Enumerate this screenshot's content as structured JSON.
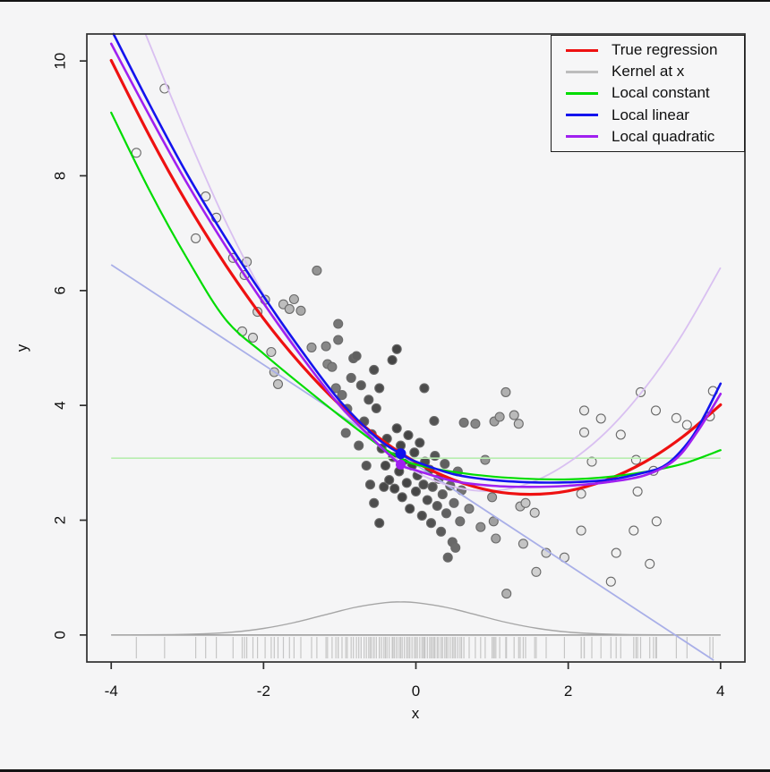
{
  "figure": {
    "background": "#f5f5f6",
    "frame_color": "#2e2e2e",
    "edge_bar_color": "#141414"
  },
  "legend": {
    "entries": [
      {
        "id": "true-regression",
        "label": "True regression",
        "color": "#EE1111"
      },
      {
        "id": "kernel-at-x",
        "label": "Kernel at x",
        "color": "#BDBDBD"
      },
      {
        "id": "local-constant",
        "label": "Local constant",
        "color": "#00DC00"
      },
      {
        "id": "local-linear",
        "label": "Local linear",
        "color": "#1414EE"
      },
      {
        "id": "local-quadratic",
        "label": "Local quadratic",
        "color": "#A020F0"
      }
    ]
  },
  "chart_data": {
    "type": "scatter",
    "title": "",
    "axes": {
      "x": {
        "label": "x",
        "ticks": [
          -4,
          -2,
          0,
          2,
          4
        ],
        "range": [
          -4.32,
          4.32
        ]
      },
      "y": {
        "label": "y",
        "ticks": [
          0,
          2,
          4,
          6,
          8,
          10
        ],
        "range": [
          -0.47,
          10.47
        ]
      }
    },
    "evaluation_point": {
      "x0": -0.2,
      "local_constant_fit": 3.08,
      "local_linear_fit": 3.16,
      "local_quadratic_fit": 2.97
    },
    "markers": [
      {
        "id": "local-linear-fit-point",
        "x": -0.2,
        "y": 3.16,
        "color": "#1212EE",
        "r": 6
      },
      {
        "id": "local-quadratic-fit-point",
        "x": -0.2,
        "y": 2.97,
        "color": "#A020F0",
        "r": 5.5
      }
    ],
    "curves": [
      {
        "id": "true-regression",
        "label": "True regression",
        "color": "#EE1111",
        "width": 3.2,
        "points": [
          [
            -4,
            10.01
          ],
          [
            -3.5,
            8.7
          ],
          [
            -3,
            7.51
          ],
          [
            -2.5,
            6.45
          ],
          [
            -2,
            5.51
          ],
          [
            -1.5,
            4.7
          ],
          [
            -1,
            4.01
          ],
          [
            -0.5,
            3.45
          ],
          [
            0,
            3.01
          ],
          [
            0.5,
            2.7
          ],
          [
            1,
            2.51
          ],
          [
            1.5,
            2.45
          ],
          [
            2,
            2.51
          ],
          [
            2.5,
            2.7
          ],
          [
            3,
            3.01
          ],
          [
            3.5,
            3.45
          ],
          [
            4,
            4.01
          ]
        ]
      },
      {
        "id": "local-constant",
        "label": "Local constant",
        "color": "#00DC00",
        "width": 2.2,
        "points": [
          [
            -4,
            9.1
          ],
          [
            -3.5,
            7.75
          ],
          [
            -3,
            6.55
          ],
          [
            -2.5,
            5.5
          ],
          [
            -2,
            4.9
          ],
          [
            -1.5,
            4.35
          ],
          [
            -1,
            3.82
          ],
          [
            -0.5,
            3.32
          ],
          [
            -0.2,
            3.08
          ],
          [
            0,
            2.97
          ],
          [
            0.5,
            2.84
          ],
          [
            1,
            2.76
          ],
          [
            1.5,
            2.72
          ],
          [
            2,
            2.71
          ],
          [
            2.5,
            2.75
          ],
          [
            3,
            2.84
          ],
          [
            3.5,
            2.98
          ],
          [
            4,
            3.22
          ]
        ]
      },
      {
        "id": "local-linear",
        "label": "Local linear",
        "color": "#1414EE",
        "width": 2.6,
        "points": [
          [
            -3.97,
            10.47
          ],
          [
            -3.5,
            9.25
          ],
          [
            -3,
            8.02
          ],
          [
            -2.5,
            6.92
          ],
          [
            -2,
            5.9
          ],
          [
            -1.5,
            4.95
          ],
          [
            -1,
            4.08
          ],
          [
            -0.5,
            3.42
          ],
          [
            -0.2,
            3.16
          ],
          [
            0,
            3.02
          ],
          [
            0.5,
            2.8
          ],
          [
            1,
            2.7
          ],
          [
            1.5,
            2.66
          ],
          [
            2,
            2.66
          ],
          [
            2.5,
            2.7
          ],
          [
            3,
            2.83
          ],
          [
            3.3,
            2.98
          ],
          [
            3.6,
            3.4
          ],
          [
            3.8,
            3.85
          ],
          [
            4,
            4.38
          ]
        ]
      },
      {
        "id": "local-quadratic",
        "label": "Local quadratic",
        "color": "#A020F0",
        "width": 2.6,
        "points": [
          [
            -4,
            10.3
          ],
          [
            -3.5,
            9.05
          ],
          [
            -3,
            7.86
          ],
          [
            -2.5,
            6.78
          ],
          [
            -2,
            5.78
          ],
          [
            -1.5,
            4.85
          ],
          [
            -1,
            4.0
          ],
          [
            -0.5,
            3.33
          ],
          [
            -0.2,
            2.97
          ],
          [
            0,
            2.87
          ],
          [
            0.5,
            2.68
          ],
          [
            1,
            2.6
          ],
          [
            1.5,
            2.58
          ],
          [
            2,
            2.6
          ],
          [
            2.5,
            2.66
          ],
          [
            3,
            2.78
          ],
          [
            3.4,
            3.05
          ],
          [
            3.7,
            3.55
          ],
          [
            4,
            4.2
          ]
        ]
      }
    ],
    "local_fits_at_x0": [
      {
        "id": "constant-fit-line",
        "color": "#B7EDAF",
        "width": 1.6,
        "points": [
          [
            -4,
            3.08
          ],
          [
            4,
            3.08
          ]
        ]
      },
      {
        "id": "linear-fit-line",
        "color": "#A9AFE8",
        "width": 1.8,
        "points": [
          [
            -4,
            6.45
          ],
          [
            3.91,
            -0.44
          ]
        ]
      },
      {
        "id": "quadratic-fit-parabola",
        "color": "#D9C0F1",
        "width": 1.8,
        "points": [
          [
            -3.55,
            10.47
          ],
          [
            -3,
            8.7
          ],
          [
            -2.5,
            7.21
          ],
          [
            -2,
            5.93
          ],
          [
            -1.5,
            4.86
          ],
          [
            -1,
            3.98
          ],
          [
            -0.5,
            3.31
          ],
          [
            0,
            2.84
          ],
          [
            0.5,
            2.58
          ],
          [
            1,
            2.51
          ],
          [
            1.5,
            2.65
          ],
          [
            2,
            3.0
          ],
          [
            2.5,
            3.54
          ],
          [
            3,
            4.29
          ],
          [
            3.5,
            5.24
          ],
          [
            4,
            6.4
          ]
        ]
      }
    ],
    "kernel": {
      "color": "#A6A6A6",
      "baseline_color": "#999999",
      "width": 1.4,
      "points": [
        [
          -4,
          0.001
        ],
        [
          -3.6,
          0.002
        ],
        [
          -3.2,
          0.006
        ],
        [
          -2.8,
          0.02
        ],
        [
          -2.4,
          0.051
        ],
        [
          -2,
          0.114
        ],
        [
          -1.6,
          0.216
        ],
        [
          -1.2,
          0.349
        ],
        [
          -0.8,
          0.48
        ],
        [
          -0.4,
          0.564
        ],
        [
          -0.2,
          0.575
        ],
        [
          0,
          0.564
        ],
        [
          0.4,
          0.48
        ],
        [
          0.8,
          0.349
        ],
        [
          1.2,
          0.216
        ],
        [
          1.6,
          0.114
        ],
        [
          2,
          0.051
        ],
        [
          2.4,
          0.02
        ],
        [
          2.8,
          0.006
        ],
        [
          3.2,
          0.002
        ],
        [
          3.6,
          0.001
        ],
        [
          4,
          0.0
        ]
      ],
      "baseline": [
        [
          -4,
          0
        ],
        [
          4,
          0
        ]
      ]
    },
    "rug": {
      "color": "#C6C6C6"
    },
    "scatter": {
      "point_radius": 5,
      "stroke_color": "#6a6a6a",
      "weight_center": -0.2,
      "weight_sd": 1.0,
      "points": [
        [
          -3.67,
          8.4
        ],
        [
          -3.3,
          9.52
        ],
        [
          -2.89,
          6.91
        ],
        [
          -2.76,
          7.64
        ],
        [
          -2.62,
          7.27
        ],
        [
          -2.4,
          6.57
        ],
        [
          -2.28,
          5.29
        ],
        [
          -2.25,
          6.27
        ],
        [
          -2.22,
          6.5
        ],
        [
          -2.14,
          5.18
        ],
        [
          -2.08,
          5.63
        ],
        [
          -1.98,
          5.84
        ],
        [
          -1.9,
          4.93
        ],
        [
          -1.86,
          4.58
        ],
        [
          -1.81,
          4.37
        ],
        [
          -1.74,
          5.76
        ],
        [
          -1.66,
          5.68
        ],
        [
          -1.6,
          5.85
        ],
        [
          -1.51,
          5.65
        ],
        [
          -1.37,
          5.01
        ],
        [
          -1.3,
          6.35
        ],
        [
          -1.18,
          5.03
        ],
        [
          -1.16,
          4.72
        ],
        [
          -1.1,
          4.67
        ],
        [
          -1.05,
          4.3
        ],
        [
          -1.02,
          5.42
        ],
        [
          -1.02,
          5.14
        ],
        [
          -0.97,
          4.18
        ],
        [
          -0.92,
          3.52
        ],
        [
          -0.9,
          3.94
        ],
        [
          -0.85,
          4.48
        ],
        [
          -0.82,
          4.82
        ],
        [
          -0.78,
          4.86
        ],
        [
          -0.75,
          3.3
        ],
        [
          -0.72,
          4.35
        ],
        [
          -0.68,
          3.72
        ],
        [
          -0.65,
          2.95
        ],
        [
          -0.62,
          4.1
        ],
        [
          -0.6,
          2.62
        ],
        [
          -0.58,
          3.5
        ],
        [
          -0.55,
          4.62
        ],
        [
          -0.55,
          2.3
        ],
        [
          -0.52,
          3.95
        ],
        [
          -0.48,
          4.3
        ],
        [
          -0.48,
          1.95
        ],
        [
          -0.45,
          3.25
        ],
        [
          -0.42,
          2.58
        ],
        [
          -0.4,
          2.95
        ],
        [
          -0.38,
          3.42
        ],
        [
          -0.35,
          2.7
        ],
        [
          -0.31,
          4.79
        ],
        [
          -0.3,
          3.1
        ],
        [
          -0.28,
          2.55
        ],
        [
          -0.25,
          4.98
        ],
        [
          -0.25,
          3.6
        ],
        [
          -0.22,
          2.85
        ],
        [
          -0.2,
          3.3
        ],
        [
          -0.18,
          2.4
        ],
        [
          -0.15,
          3.05
        ],
        [
          -0.12,
          2.65
        ],
        [
          -0.1,
          3.48
        ],
        [
          -0.08,
          2.2
        ],
        [
          -0.05,
          2.95
        ],
        [
          -0.02,
          3.18
        ],
        [
          0.0,
          2.5
        ],
        [
          0.02,
          2.78
        ],
        [
          0.05,
          3.35
        ],
        [
          0.08,
          2.08
        ],
        [
          0.1,
          2.62
        ],
        [
          0.11,
          4.3
        ],
        [
          0.12,
          3.02
        ],
        [
          0.15,
          2.35
        ],
        [
          0.18,
          2.88
        ],
        [
          0.2,
          1.95
        ],
        [
          0.22,
          2.58
        ],
        [
          0.24,
          3.73
        ],
        [
          0.25,
          3.12
        ],
        [
          0.28,
          2.25
        ],
        [
          0.3,
          2.72
        ],
        [
          0.33,
          1.8
        ],
        [
          0.35,
          2.45
        ],
        [
          0.38,
          2.98
        ],
        [
          0.4,
          2.12
        ],
        [
          0.42,
          1.35
        ],
        [
          0.45,
          2.6
        ],
        [
          0.48,
          1.62
        ],
        [
          0.5,
          2.3
        ],
        [
          0.52,
          1.52
        ],
        [
          0.55,
          2.85
        ],
        [
          0.58,
          1.98
        ],
        [
          0.6,
          2.52
        ],
        [
          0.63,
          3.7
        ],
        [
          0.7,
          2.2
        ],
        [
          0.78,
          3.68
        ],
        [
          0.85,
          1.88
        ],
        [
          0.91,
          3.05
        ],
        [
          1.0,
          2.4
        ],
        [
          1.02,
          1.98
        ],
        [
          1.03,
          3.72
        ],
        [
          1.05,
          1.68
        ],
        [
          1.1,
          3.8
        ],
        [
          1.18,
          4.23
        ],
        [
          1.19,
          0.72
        ],
        [
          1.29,
          3.83
        ],
        [
          1.35,
          3.68
        ],
        [
          1.37,
          2.24
        ],
        [
          1.41,
          1.59
        ],
        [
          1.44,
          2.3
        ],
        [
          1.56,
          2.13
        ],
        [
          1.58,
          1.1
        ],
        [
          1.71,
          1.43
        ],
        [
          1.95,
          1.35
        ],
        [
          2.17,
          2.46
        ],
        [
          2.17,
          1.82
        ],
        [
          2.21,
          3.91
        ],
        [
          2.21,
          3.53
        ],
        [
          2.31,
          3.02
        ],
        [
          2.43,
          3.77
        ],
        [
          2.56,
          0.93
        ],
        [
          2.63,
          1.43
        ],
        [
          2.69,
          3.49
        ],
        [
          2.86,
          1.82
        ],
        [
          2.89,
          3.05
        ],
        [
          2.91,
          2.5
        ],
        [
          2.95,
          4.23
        ],
        [
          3.07,
          1.24
        ],
        [
          3.12,
          2.86
        ],
        [
          3.15,
          3.91
        ],
        [
          3.16,
          1.98
        ],
        [
          3.42,
          3.78
        ],
        [
          3.56,
          3.66
        ],
        [
          3.86,
          3.81
        ],
        [
          3.9,
          4.25
        ]
      ]
    }
  }
}
